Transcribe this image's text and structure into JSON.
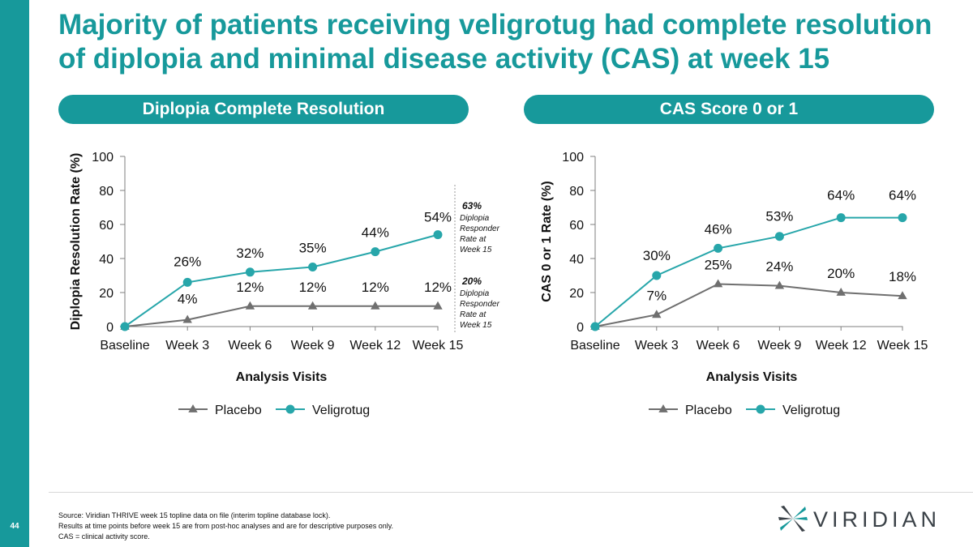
{
  "page": {
    "number": "44",
    "title": "Majority of patients receiving veligrotug had complete resolution\nof diplopia and minimal disease activity (CAS) at week 15"
  },
  "colors": {
    "accent": "#17999b",
    "placebo": "#6f6f6f",
    "veligrotug": "#27a6aa",
    "axis": "#7f7f7f"
  },
  "panels": [
    {
      "header": "Diplopia Complete Resolution"
    },
    {
      "header": "CAS Score 0 or 1"
    }
  ],
  "chart_data": [
    {
      "type": "line",
      "title": "Diplopia Complete Resolution",
      "xlabel": "Analysis Visits",
      "ylabel": "Diplopia Resolution Rate (%)",
      "categories": [
        "Baseline",
        "Week 3",
        "Week 6",
        "Week 9",
        "Week 12",
        "Week 15"
      ],
      "ylim": [
        0,
        100
      ],
      "yticks": [
        "0",
        "20",
        "40",
        "60",
        "80",
        "100"
      ],
      "series": [
        {
          "name": "Placebo",
          "values": [
            0,
            4,
            12,
            12,
            12,
            12
          ],
          "labels": [
            "",
            "4%",
            "12%",
            "12%",
            "12%",
            "12%"
          ]
        },
        {
          "name": "Veligrotug",
          "values": [
            0,
            26,
            32,
            35,
            44,
            54
          ],
          "labels": [
            "",
            "26%",
            "32%",
            "35%",
            "44%",
            "54%"
          ]
        }
      ],
      "legend": [
        "Placebo",
        "Veligrotug"
      ],
      "annotations": [
        {
          "pct": "63%",
          "lines": [
            "Diplopia",
            "Responder",
            "Rate at",
            "Week 15"
          ]
        },
        {
          "pct": "20%",
          "lines": [
            "Diplopia",
            "Responder",
            "Rate at",
            "Week 15"
          ]
        }
      ]
    },
    {
      "type": "line",
      "title": "CAS Score 0 or 1",
      "xlabel": "Analysis Visits",
      "ylabel": "CAS 0 or 1 Rate (%)",
      "categories": [
        "Baseline",
        "Week 3",
        "Week 6",
        "Week 9",
        "Week 12",
        "Week 15"
      ],
      "ylim": [
        0,
        100
      ],
      "yticks": [
        "0",
        "20",
        "40",
        "60",
        "80",
        "100"
      ],
      "series": [
        {
          "name": "Placebo",
          "values": [
            0,
            7,
            25,
            24,
            20,
            18
          ],
          "labels": [
            "",
            "7%",
            "25%",
            "24%",
            "20%",
            "18%"
          ]
        },
        {
          "name": "Veligrotug",
          "values": [
            0,
            30,
            46,
            53,
            64,
            64
          ],
          "labels": [
            "",
            "30%",
            "46%",
            "53%",
            "64%",
            "64%"
          ]
        }
      ],
      "legend": [
        "Placebo",
        "Veligrotug"
      ],
      "annotations": []
    }
  ],
  "footnotes": [
    "Source: Viridian THRIVE week 15 topline data on file (interim topline database lock).",
    "Results at time points before week 15 are from post-hoc analyses and are for descriptive purposes only.",
    "CAS = clinical activity score."
  ],
  "logo": {
    "text": "VIRIDIAN"
  }
}
